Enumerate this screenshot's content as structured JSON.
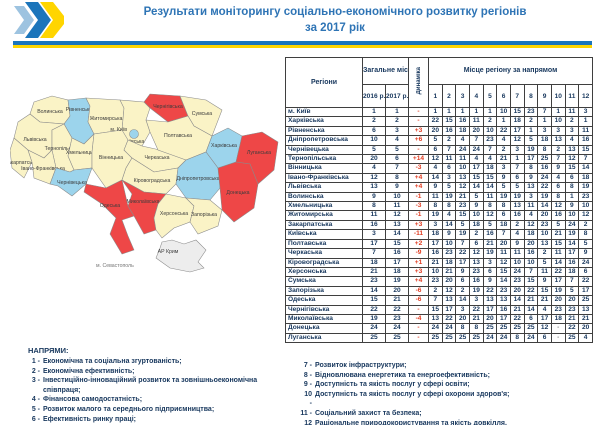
{
  "header": {
    "title_line1": "Результати моніторингу соціально-економічного розвитку регіонів",
    "title_line2": "за 2017 рік"
  },
  "colors": {
    "title_blue": "#2E74B5",
    "flag_blue": "#1B75BB",
    "flag_yellow": "#FFD500",
    "text_navy": "#17375D",
    "dynamics_red": "#E03A1F",
    "table_tier_top": "#87E1E1",
    "table_tier_mid": "#FBF3CE",
    "table_tier_bottom": "#F4767B",
    "map_tier_top": "#9CD4EC",
    "map_tier_mid": "#FAF3C6",
    "map_tier_bottom": "#EE4747",
    "map_crimea": "#EDEDED"
  },
  "table": {
    "headers": {
      "regions": "Регіони",
      "overall": "Загальне місце регіону",
      "y2016": "2016 р.",
      "y2017": "2017 р.",
      "dynamics": "Динаміка",
      "directions": "Місце регіону за напрямом",
      "direction_cols": [
        "1",
        "2",
        "3",
        "4",
        "5",
        "6",
        "7",
        "8",
        "9",
        "10",
        "11",
        "12"
      ]
    },
    "rows": [
      {
        "region": "м. Київ",
        "y2016": "1",
        "y2017": "1",
        "dyn": "-",
        "tier": "top",
        "dirs": [
          "1",
          "1",
          "1",
          "1",
          "1",
          "10",
          "15",
          "23",
          "7",
          "1",
          "11",
          "3"
        ]
      },
      {
        "region": "Харківська",
        "y2016": "2",
        "y2017": "2",
        "dyn": "-",
        "tier": "top",
        "dirs": [
          "22",
          "15",
          "16",
          "11",
          "2",
          "1",
          "18",
          "2",
          "1",
          "10",
          "2",
          "1"
        ]
      },
      {
        "region": "Рівненська",
        "y2016": "6",
        "y2017": "3",
        "dyn": "+3",
        "tier": "top",
        "dirs": [
          "20",
          "16",
          "18",
          "20",
          "10",
          "22",
          "17",
          "1",
          "3",
          "3",
          "3",
          "11"
        ]
      },
      {
        "region": "Дніпропетровська",
        "y2016": "10",
        "y2017": "4",
        "dyn": "+6",
        "tier": "top",
        "dirs": [
          "5",
          "2",
          "4",
          "7",
          "23",
          "4",
          "12",
          "5",
          "18",
          "13",
          "4",
          "16"
        ]
      },
      {
        "region": "Чернівецька",
        "y2016": "5",
        "y2017": "5",
        "dyn": "-",
        "tier": "top",
        "dirs": [
          "6",
          "7",
          "24",
          "24",
          "7",
          "2",
          "3",
          "19",
          "8",
          "2",
          "13",
          "15"
        ]
      },
      {
        "region": "Тернопільська",
        "y2016": "20",
        "y2017": "6",
        "dyn": "+14",
        "tier": "mid",
        "dirs": [
          "12",
          "11",
          "11",
          "4",
          "4",
          "21",
          "1",
          "17",
          "25",
          "7",
          "12",
          "7"
        ]
      },
      {
        "region": "Вінницька",
        "y2016": "4",
        "y2017": "7",
        "dyn": "-3",
        "tier": "mid",
        "dirs": [
          "4",
          "6",
          "10",
          "17",
          "18",
          "3",
          "7",
          "8",
          "16",
          "9",
          "15",
          "14"
        ]
      },
      {
        "region": "Івано-Франківська",
        "y2016": "12",
        "y2017": "8",
        "dyn": "+4",
        "tier": "mid",
        "dirs": [
          "14",
          "3",
          "13",
          "15",
          "15",
          "9",
          "6",
          "9",
          "24",
          "4",
          "6",
          "18"
        ]
      },
      {
        "region": "Львівська",
        "y2016": "13",
        "y2017": "9",
        "dyn": "+4",
        "tier": "mid",
        "dirs": [
          "9",
          "5",
          "12",
          "14",
          "14",
          "5",
          "5",
          "13",
          "22",
          "6",
          "8",
          "19"
        ]
      },
      {
        "region": "Волинська",
        "y2016": "9",
        "y2017": "10",
        "dyn": "-1",
        "tier": "mid",
        "dirs": [
          "11",
          "19",
          "21",
          "5",
          "11",
          "19",
          "19",
          "3",
          "19",
          "8",
          "1",
          "23"
        ]
      },
      {
        "region": "Хмельницька",
        "y2016": "8",
        "y2017": "11",
        "dyn": "-3",
        "tier": "mid",
        "dirs": [
          "8",
          "8",
          "23",
          "9",
          "8",
          "8",
          "13",
          "11",
          "14",
          "12",
          "9",
          "10"
        ]
      },
      {
        "region": "Житомирська",
        "y2016": "11",
        "y2017": "12",
        "dyn": "-1",
        "tier": "mid",
        "dirs": [
          "19",
          "4",
          "15",
          "10",
          "12",
          "6",
          "16",
          "4",
          "20",
          "16",
          "10",
          "12"
        ]
      },
      {
        "region": "Закарпатська",
        "y2016": "16",
        "y2017": "13",
        "dyn": "+3",
        "tier": "mid",
        "dirs": [
          "3",
          "14",
          "5",
          "18",
          "5",
          "18",
          "2",
          "12",
          "23",
          "5",
          "24",
          "2"
        ]
      },
      {
        "region": "Київська",
        "y2016": "3",
        "y2017": "14",
        "dyn": "-11",
        "tier": "mid",
        "dirs": [
          "18",
          "9",
          "19",
          "2",
          "16",
          "7",
          "4",
          "18",
          "10",
          "21",
          "19",
          "8"
        ]
      },
      {
        "region": "Полтавська",
        "y2016": "17",
        "y2017": "15",
        "dyn": "+2",
        "tier": "mid",
        "dirs": [
          "17",
          "10",
          "7",
          "6",
          "21",
          "20",
          "9",
          "20",
          "13",
          "15",
          "14",
          "5"
        ]
      },
      {
        "region": "Черкаська",
        "y2016": "7",
        "y2017": "16",
        "dyn": "-9",
        "tier": "mid",
        "dirs": [
          "16",
          "23",
          "22",
          "12",
          "19",
          "11",
          "11",
          "16",
          "2",
          "11",
          "17",
          "9"
        ]
      },
      {
        "region": "Кіровоградська",
        "y2016": "18",
        "y2017": "17",
        "dyn": "+1",
        "tier": "mid",
        "dirs": [
          "21",
          "18",
          "17",
          "13",
          "3",
          "12",
          "10",
          "10",
          "5",
          "14",
          "16",
          "24"
        ]
      },
      {
        "region": "Херсонська",
        "y2016": "21",
        "y2017": "18",
        "dyn": "+3",
        "tier": "mid",
        "dirs": [
          "10",
          "21",
          "9",
          "23",
          "6",
          "15",
          "24",
          "7",
          "11",
          "22",
          "18",
          "6"
        ]
      },
      {
        "region": "Сумська",
        "y2016": "23",
        "y2017": "19",
        "dyn": "+4",
        "tier": "mid",
        "dirs": [
          "23",
          "20",
          "6",
          "16",
          "9",
          "14",
          "23",
          "15",
          "9",
          "17",
          "7",
          "22"
        ]
      },
      {
        "region": "Запорізька",
        "y2016": "14",
        "y2017": "20",
        "dyn": "-6",
        "tier": "mid",
        "dirs": [
          "2",
          "12",
          "2",
          "19",
          "22",
          "23",
          "20",
          "22",
          "15",
          "19",
          "5",
          "17"
        ]
      },
      {
        "region": "Одеська",
        "y2016": "15",
        "y2017": "21",
        "dyn": "-6",
        "tier": "bottom",
        "dirs": [
          "7",
          "13",
          "14",
          "3",
          "13",
          "13",
          "14",
          "21",
          "21",
          "20",
          "20",
          "25"
        ]
      },
      {
        "region": "Чернігівська",
        "y2016": "22",
        "y2017": "22",
        "dyn": "-",
        "tier": "bottom",
        "dirs": [
          "15",
          "17",
          "3",
          "22",
          "17",
          "16",
          "21",
          "14",
          "4",
          "23",
          "23",
          "13"
        ]
      },
      {
        "region": "Миколаївська",
        "y2016": "19",
        "y2017": "23",
        "dyn": "-4",
        "tier": "bottom",
        "dirs": [
          "13",
          "22",
          "20",
          "21",
          "20",
          "17",
          "22",
          "6",
          "17",
          "18",
          "21",
          "21"
        ]
      },
      {
        "region": "Донецька",
        "y2016": "24",
        "y2017": "24",
        "dyn": "-",
        "tier": "bottom",
        "dirs": [
          "24",
          "24",
          "8",
          "8",
          "25",
          "25",
          "25",
          "25",
          "12",
          "-",
          "22",
          "20"
        ]
      },
      {
        "region": "Луганська",
        "y2016": "25",
        "y2017": "25",
        "dyn": "-",
        "tier": "bottom",
        "dirs": [
          "25",
          "25",
          "25",
          "25",
          "24",
          "24",
          "8",
          "24",
          "6",
          "-",
          "25",
          "4"
        ]
      }
    ]
  },
  "map": {
    "regions": [
      {
        "id": "volyn",
        "label": "Волинська",
        "tier": "mid"
      },
      {
        "id": "rivne",
        "label": "Рівненська",
        "tier": "top"
      },
      {
        "id": "zhytomyr",
        "label": "Житомирська",
        "tier": "mid"
      },
      {
        "id": "kyivska",
        "label": "Київська",
        "tier": "mid"
      },
      {
        "id": "chernihiv",
        "label": "Чернігівська",
        "tier": "bottom"
      },
      {
        "id": "sumy",
        "label": "Сумська",
        "tier": "mid"
      },
      {
        "id": "lviv",
        "label": "Львівська",
        "tier": "mid"
      },
      {
        "id": "ternopil",
        "label": "Тернопільська",
        "tier": "mid"
      },
      {
        "id": "khmel",
        "label": "Хмельницька",
        "tier": "mid"
      },
      {
        "id": "vinnytsia",
        "label": "Вінницька",
        "tier": "mid"
      },
      {
        "id": "cherkasy",
        "label": "Черкаська",
        "tier": "mid"
      },
      {
        "id": "poltava",
        "label": "Полтавська",
        "tier": "mid"
      },
      {
        "id": "kharkiv",
        "label": "Харківська",
        "tier": "top"
      },
      {
        "id": "luhansk",
        "label": "Луганська",
        "tier": "bottom"
      },
      {
        "id": "zakarpattia",
        "label": "Закарпатська",
        "tier": "mid"
      },
      {
        "id": "ivfrank",
        "label": "Івано-Франківська",
        "tier": "mid"
      },
      {
        "id": "chernivtsi",
        "label": "Чернівецька",
        "tier": "top"
      },
      {
        "id": "kirovohrad",
        "label": "Кіровоградська",
        "tier": "mid"
      },
      {
        "id": "dnipro",
        "label": "Дніпропетровська",
        "tier": "top"
      },
      {
        "id": "donetsk",
        "label": "Донецька",
        "tier": "bottom"
      },
      {
        "id": "odesa",
        "label": "Одеська",
        "tier": "bottom"
      },
      {
        "id": "mykolaiv",
        "label": "Миколаївська",
        "tier": "bottom"
      },
      {
        "id": "kherson",
        "label": "Херсонська",
        "tier": "mid"
      },
      {
        "id": "zapor",
        "label": "Запорізька",
        "tier": "mid"
      },
      {
        "id": "crimea",
        "label": "АР Крим",
        "tier": "crimea"
      }
    ],
    "kyiv_city": {
      "label": "м. Київ",
      "tier": "top"
    },
    "sevastopol_label": "м. Севастополь"
  },
  "legend": {
    "heading": "НАПРЯМИ:",
    "left": [
      {
        "n": "1 -",
        "t": "Економічна та соціальна згуртованість;"
      },
      {
        "n": "2 -",
        "t": "Економічна ефективність;"
      },
      {
        "n": "3 -",
        "t": "Інвестиційно-інноваційний розвиток та зовнішньоекономічна співпраця;"
      },
      {
        "n": "4 -",
        "t": "Фінансова самодостатність;"
      },
      {
        "n": "5 -",
        "t": "Розвиток малого та середнього підприємництва;"
      },
      {
        "n": "6 -",
        "t": "Ефективність ринку праці;"
      }
    ],
    "right": [
      {
        "n": "7 -",
        "t": "Розвиток інфраструктури;"
      },
      {
        "n": "8 -",
        "t": "Відновлювана енергетика та енергоефективність;"
      },
      {
        "n": "9 -",
        "t": "Доступність та якість послуг у сфері освіти;"
      },
      {
        "n": "10 -",
        "t": "Доступність та якість послуг у сфері охорони здоров'я;"
      },
      {
        "n": "11 -",
        "t": "Соціальний захист та безпека;"
      },
      {
        "n": "12 -",
        "t": "Раціональне природокористування та якість довкілля."
      }
    ]
  }
}
